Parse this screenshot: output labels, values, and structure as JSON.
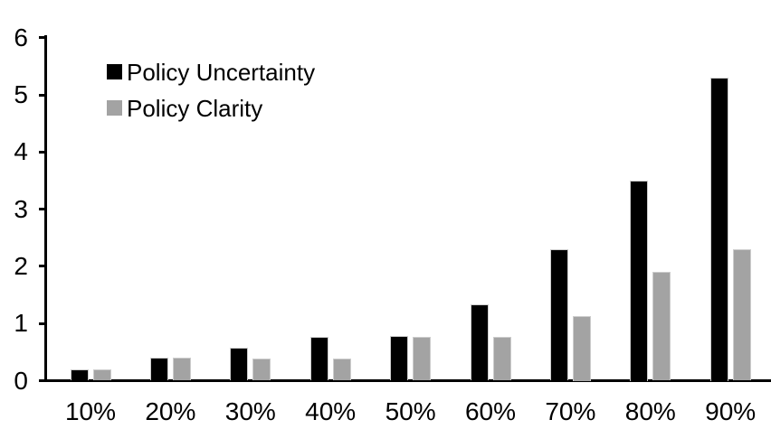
{
  "chart_data": {
    "type": "bar",
    "title": "",
    "xlabel": "",
    "ylabel": "",
    "categories": [
      "10%",
      "20%",
      "30%",
      "40%",
      "50%",
      "60%",
      "70%",
      "80%",
      "90%"
    ],
    "series": [
      {
        "name": "Policy Uncertainty",
        "color": "#000000",
        "values": [
          0.2,
          0.4,
          0.57,
          0.76,
          0.78,
          1.33,
          2.3,
          3.5,
          5.3
        ]
      },
      {
        "name": "Policy Clarity",
        "color": "#a3a3a3",
        "values": [
          0.2,
          0.4,
          0.38,
          0.38,
          0.77,
          0.76,
          1.13,
          1.9,
          2.3
        ]
      }
    ],
    "ylim": [
      0,
      6
    ],
    "yticks": [
      "0",
      "1",
      "2",
      "3",
      "4",
      "5",
      "6"
    ],
    "grid": false,
    "legend_position": "top-left",
    "axis_color": "#000000",
    "bar_outline_color": "#cccccc"
  }
}
